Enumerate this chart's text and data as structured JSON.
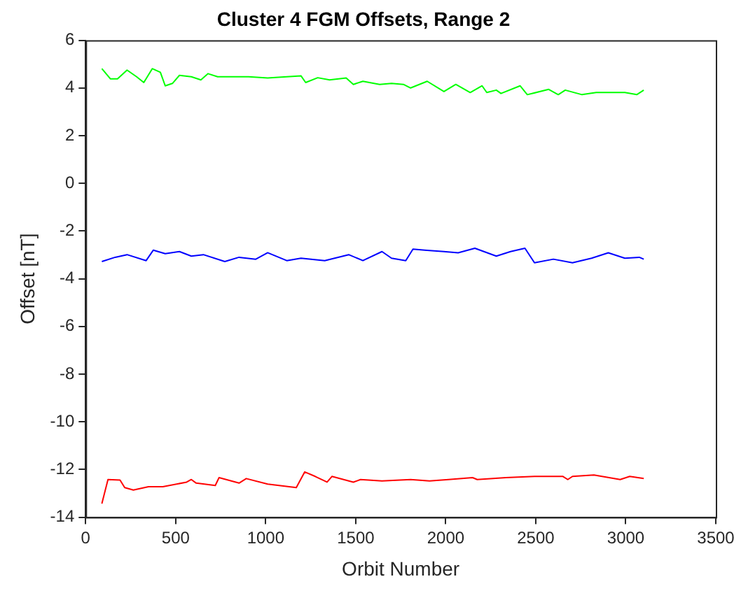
{
  "chart_data": {
    "type": "line",
    "title": "Cluster 4 FGM Offsets, Range 2",
    "xlabel": "Orbit Number",
    "ylabel": "Offset [nT]",
    "xlim": [
      0,
      3500
    ],
    "xticks": [
      0,
      500,
      1000,
      1500,
      2000,
      2500,
      3000,
      3500
    ],
    "ylim": [
      -14,
      6
    ],
    "yticks": [
      -14,
      -12,
      -10,
      -8,
      -6,
      -4,
      -2,
      0,
      2,
      4,
      6
    ],
    "grid": false,
    "legend": false,
    "marker": "none",
    "line_style": "solid",
    "series": [
      {
        "color": "#00ff00",
        "x": [
          90,
          138,
          177,
          230,
          283,
          323,
          370,
          415,
          442,
          482,
          521,
          587,
          640,
          680,
          733,
          799,
          905,
          1011,
          1117,
          1196,
          1222,
          1289,
          1355,
          1447,
          1487,
          1540,
          1633,
          1699,
          1765,
          1805,
          1897,
          1990,
          2056,
          2136,
          2202,
          2228,
          2281,
          2307,
          2413,
          2453,
          2572,
          2625,
          2664,
          2757,
          2836,
          2995,
          3061,
          3100
        ],
        "values": [
          4.81,
          4.38,
          4.38,
          4.75,
          4.47,
          4.23,
          4.81,
          4.66,
          4.09,
          4.19,
          4.53,
          4.47,
          4.34,
          4.6,
          4.47,
          4.47,
          4.47,
          4.42,
          4.47,
          4.51,
          4.23,
          4.43,
          4.34,
          4.42,
          4.15,
          4.28,
          4.15,
          4.19,
          4.15,
          4.0,
          4.28,
          3.85,
          4.15,
          3.81,
          4.09,
          3.81,
          3.91,
          3.77,
          4.09,
          3.72,
          3.94,
          3.72,
          3.91,
          3.72,
          3.81,
          3.81,
          3.72,
          3.91
        ]
      },
      {
        "color": "#0000ff",
        "x": [
          90,
          164,
          230,
          336,
          376,
          442,
          521,
          587,
          654,
          773,
          852,
          945,
          1011,
          1117,
          1196,
          1328,
          1461,
          1540,
          1646,
          1699,
          1778,
          1818,
          1884,
          1990,
          2069,
          2162,
          2281,
          2360,
          2440,
          2493,
          2598,
          2704,
          2810,
          2903,
          2995,
          3075,
          3100
        ],
        "values": [
          -3.28,
          -3.1,
          -2.99,
          -3.24,
          -2.8,
          -2.95,
          -2.86,
          -3.05,
          -2.99,
          -3.28,
          -3.1,
          -3.18,
          -2.91,
          -3.24,
          -3.14,
          -3.24,
          -2.99,
          -3.24,
          -2.86,
          -3.14,
          -3.24,
          -2.76,
          -2.8,
          -2.86,
          -2.91,
          -2.72,
          -3.05,
          -2.86,
          -2.72,
          -3.33,
          -3.18,
          -3.33,
          -3.14,
          -2.91,
          -3.14,
          -3.1,
          -3.18
        ]
      },
      {
        "color": "#ff0000",
        "x": [
          90,
          124,
          191,
          217,
          265,
          349,
          429,
          561,
          587,
          614,
          720,
          741,
          852,
          892,
          1011,
          1170,
          1217,
          1275,
          1341,
          1368,
          1487,
          1527,
          1646,
          1805,
          1910,
          2016,
          2149,
          2175,
          2334,
          2493,
          2651,
          2678,
          2704,
          2823,
          2969,
          3022,
          3100
        ],
        "values": [
          -13.43,
          -12.42,
          -12.44,
          -12.76,
          -12.86,
          -12.72,
          -12.72,
          -12.53,
          -12.42,
          -12.57,
          -12.67,
          -12.34,
          -12.57,
          -12.38,
          -12.61,
          -12.76,
          -12.1,
          -12.29,
          -12.53,
          -12.29,
          -12.53,
          -12.42,
          -12.48,
          -12.42,
          -12.48,
          -12.42,
          -12.34,
          -12.42,
          -12.34,
          -12.29,
          -12.29,
          -12.42,
          -12.29,
          -12.23,
          -12.42,
          -12.29,
          -12.38
        ]
      }
    ]
  }
}
